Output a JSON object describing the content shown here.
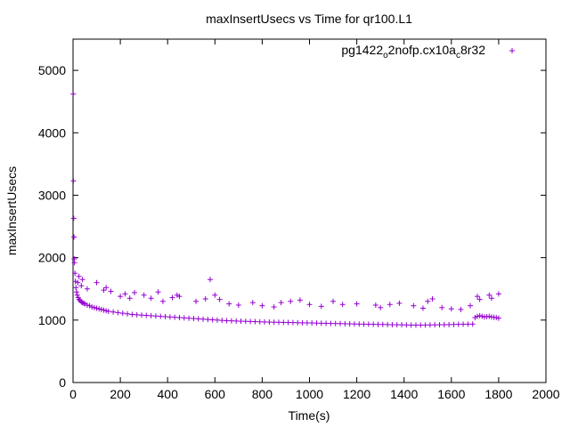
{
  "chart_data": {
    "type": "scatter",
    "title": "maxInsertUsecs vs Time for qr100.L1",
    "xlabel": "Time(s)",
    "ylabel": "maxInsertUsecs",
    "xlim": [
      0,
      2000
    ],
    "ylim": [
      0,
      5500
    ],
    "xticks": [
      "0",
      "200",
      "400",
      "600",
      "800",
      "1000",
      "1200",
      "1400",
      "1600",
      "1800",
      "2000"
    ],
    "yticks": [
      "0",
      "1000",
      "2000",
      "3000",
      "4000",
      "5000"
    ],
    "grid": false,
    "legend_position": "top-right",
    "marker": "+",
    "series": [
      {
        "name_parts": [
          "pg1422",
          "o",
          "2nofp.cx10a",
          "c",
          "8r32"
        ],
        "color": "#9400d3",
        "points": [
          [
            1,
            4620
          ],
          [
            2,
            3230
          ],
          [
            3,
            2630
          ],
          [
            4,
            2330
          ],
          [
            5,
            1980
          ],
          [
            6,
            1920
          ],
          [
            8,
            1750
          ],
          [
            10,
            1620
          ],
          [
            12,
            1520
          ],
          [
            15,
            1450
          ],
          [
            18,
            1400
          ],
          [
            22,
            1360
          ],
          [
            26,
            1330
          ],
          [
            30,
            1310
          ],
          [
            35,
            1290
          ],
          [
            40,
            1280
          ],
          [
            45,
            1270
          ],
          [
            50,
            1260
          ],
          [
            60,
            1240
          ],
          [
            70,
            1230
          ],
          [
            80,
            1210
          ],
          [
            90,
            1200
          ],
          [
            100,
            1190
          ],
          [
            110,
            1180
          ],
          [
            120,
            1170
          ],
          [
            130,
            1160
          ],
          [
            140,
            1150
          ],
          [
            150,
            1140
          ],
          [
            170,
            1130
          ],
          [
            190,
            1120
          ],
          [
            210,
            1110
          ],
          [
            230,
            1100
          ],
          [
            250,
            1090
          ],
          [
            270,
            1085
          ],
          [
            290,
            1080
          ],
          [
            310,
            1075
          ],
          [
            330,
            1070
          ],
          [
            350,
            1065
          ],
          [
            370,
            1060
          ],
          [
            390,
            1055
          ],
          [
            410,
            1050
          ],
          [
            430,
            1045
          ],
          [
            450,
            1040
          ],
          [
            470,
            1035
          ],
          [
            490,
            1030
          ],
          [
            510,
            1025
          ],
          [
            530,
            1020
          ],
          [
            550,
            1015
          ],
          [
            570,
            1010
          ],
          [
            590,
            1005
          ],
          [
            610,
            1000
          ],
          [
            630,
            995
          ],
          [
            650,
            990
          ],
          [
            670,
            988
          ],
          [
            690,
            985
          ],
          [
            710,
            982
          ],
          [
            730,
            980
          ],
          [
            750,
            978
          ],
          [
            770,
            975
          ],
          [
            790,
            972
          ],
          [
            810,
            970
          ],
          [
            830,
            968
          ],
          [
            850,
            966
          ],
          [
            870,
            965
          ],
          [
            890,
            963
          ],
          [
            910,
            962
          ],
          [
            930,
            960
          ],
          [
            950,
            958
          ],
          [
            970,
            956
          ],
          [
            990,
            955
          ],
          [
            1010,
            954
          ],
          [
            1030,
            952
          ],
          [
            1050,
            950
          ],
          [
            1070,
            948
          ],
          [
            1090,
            946
          ],
          [
            1110,
            945
          ],
          [
            1130,
            944
          ],
          [
            1150,
            942
          ],
          [
            1170,
            940
          ],
          [
            1190,
            938
          ],
          [
            1210,
            936
          ],
          [
            1230,
            935
          ],
          [
            1250,
            934
          ],
          [
            1270,
            932
          ],
          [
            1290,
            930
          ],
          [
            1310,
            930
          ],
          [
            1330,
            928
          ],
          [
            1350,
            926
          ],
          [
            1370,
            925
          ],
          [
            1390,
            924
          ],
          [
            1410,
            922
          ],
          [
            1430,
            920
          ],
          [
            1450,
            920
          ],
          [
            1470,
            920
          ],
          [
            1490,
            921
          ],
          [
            1510,
            922
          ],
          [
            1530,
            924
          ],
          [
            1550,
            925
          ],
          [
            1570,
            926
          ],
          [
            1590,
            928
          ],
          [
            1610,
            930
          ],
          [
            1630,
            932
          ],
          [
            1650,
            934
          ],
          [
            1670,
            935
          ],
          [
            1690,
            936
          ],
          [
            1700,
            1040
          ],
          [
            1710,
            1060
          ],
          [
            1720,
            1070
          ],
          [
            1730,
            1060
          ],
          [
            1740,
            1050
          ],
          [
            1750,
            1055
          ],
          [
            1760,
            1060
          ],
          [
            1770,
            1050
          ],
          [
            1780,
            1045
          ],
          [
            1790,
            1040
          ],
          [
            1800,
            1030
          ],
          [
            20,
            1600
          ],
          [
            25,
            1700
          ],
          [
            35,
            1550
          ],
          [
            40,
            1650
          ],
          [
            60,
            1500
          ],
          [
            100,
            1600
          ],
          [
            130,
            1480
          ],
          [
            140,
            1520
          ],
          [
            160,
            1460
          ],
          [
            200,
            1380
          ],
          [
            220,
            1420
          ],
          [
            240,
            1350
          ],
          [
            260,
            1440
          ],
          [
            300,
            1400
          ],
          [
            330,
            1350
          ],
          [
            360,
            1450
          ],
          [
            380,
            1300
          ],
          [
            420,
            1360
          ],
          [
            440,
            1400
          ],
          [
            450,
            1380
          ],
          [
            520,
            1300
          ],
          [
            560,
            1340
          ],
          [
            580,
            1650
          ],
          [
            600,
            1400
          ],
          [
            620,
            1330
          ],
          [
            660,
            1260
          ],
          [
            700,
            1240
          ],
          [
            760,
            1280
          ],
          [
            800,
            1230
          ],
          [
            850,
            1210
          ],
          [
            880,
            1280
          ],
          [
            920,
            1300
          ],
          [
            960,
            1320
          ],
          [
            1000,
            1250
          ],
          [
            1050,
            1220
          ],
          [
            1100,
            1300
          ],
          [
            1140,
            1250
          ],
          [
            1200,
            1260
          ],
          [
            1280,
            1240
          ],
          [
            1300,
            1200
          ],
          [
            1340,
            1250
          ],
          [
            1380,
            1270
          ],
          [
            1440,
            1230
          ],
          [
            1480,
            1190
          ],
          [
            1500,
            1300
          ],
          [
            1520,
            1340
          ],
          [
            1560,
            1200
          ],
          [
            1600,
            1180
          ],
          [
            1640,
            1170
          ],
          [
            1680,
            1230
          ],
          [
            1710,
            1380
          ],
          [
            1720,
            1330
          ],
          [
            1760,
            1400
          ],
          [
            1770,
            1350
          ],
          [
            1800,
            1420
          ]
        ]
      }
    ]
  }
}
